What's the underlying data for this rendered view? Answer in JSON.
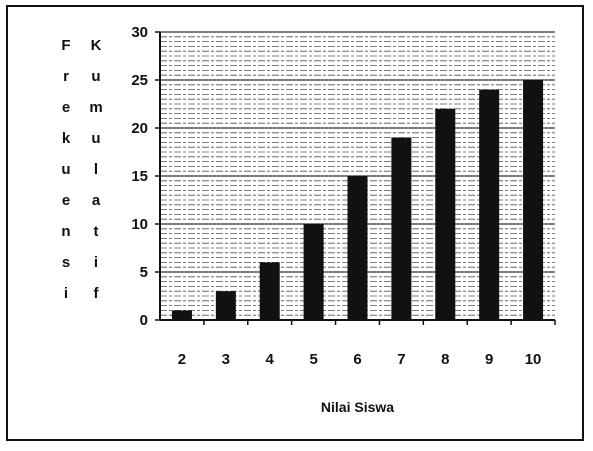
{
  "chart_data": {
    "type": "bar",
    "categories": [
      "2",
      "3",
      "4",
      "5",
      "6",
      "7",
      "8",
      "9",
      "10"
    ],
    "series": [
      {
        "values": [
          1,
          3,
          6,
          10,
          15,
          19,
          22,
          24,
          25
        ]
      }
    ],
    "title": "",
    "xlabel": "Nilai Siswa",
    "ylabel": "Frekuensi Kumulatif",
    "ylabel_columns": [
      "Frekuensi",
      "Kumulatif"
    ],
    "ylim": [
      0,
      30
    ],
    "yticks": [
      "0",
      "5",
      "10",
      "15",
      "20",
      "25",
      "30"
    ],
    "grid": true,
    "legend": "none",
    "bar_color": "#111111",
    "grid_color": "#555555"
  }
}
